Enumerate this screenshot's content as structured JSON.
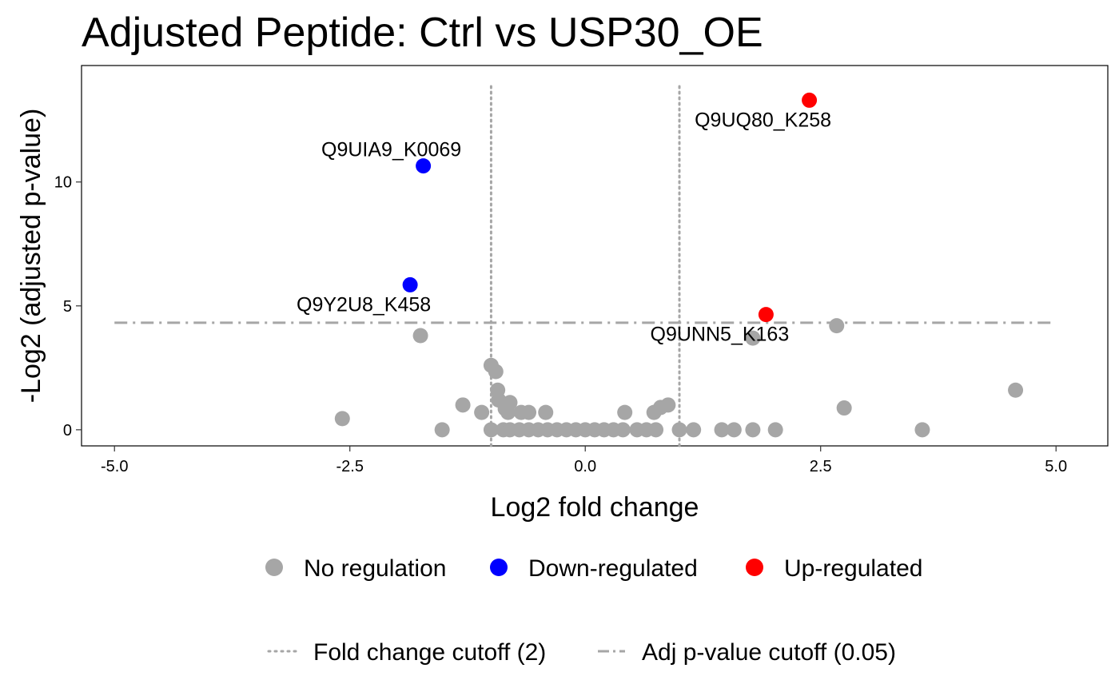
{
  "chart_data": {
    "type": "scatter",
    "title": "Adjusted Peptide: Ctrl vs USP30_OE",
    "xlabel": "Log2 fold change",
    "ylabel": "-Log2 (adjusted p-value)",
    "xlim": [
      -5.35,
      5.55
    ],
    "ylim": [
      -0.65,
      14.7
    ],
    "x_ticks": [
      -5.0,
      -2.5,
      0.0,
      2.5,
      5.0
    ],
    "x_tick_labels": [
      "-5.0",
      "-2.5",
      "0.0",
      "2.5",
      "5.0"
    ],
    "y_ticks": [
      0,
      5,
      10
    ],
    "y_tick_labels": [
      "0",
      "5",
      "10"
    ],
    "grid": false,
    "fold_change_cutoff_lines": [
      -1,
      1
    ],
    "adj_pvalue_cutoff_line": 4.32,
    "cutoff_line_span": [
      -5.0,
      5.0
    ],
    "series": [
      {
        "name": "No regulation",
        "color": "#a6a6a6",
        "points": [
          [
            -2.58,
            0.45
          ],
          [
            -1.52,
            0.0
          ],
          [
            -1.3,
            1.0
          ],
          [
            -1.1,
            0.7
          ],
          [
            -1.0,
            2.6
          ],
          [
            -0.95,
            2.35
          ],
          [
            -0.93,
            1.6
          ],
          [
            -0.92,
            1.2
          ],
          [
            -0.8,
            1.1
          ],
          [
            -0.85,
            0.85
          ],
          [
            -0.82,
            0.7
          ],
          [
            -0.68,
            0.7
          ],
          [
            -0.6,
            0.7
          ],
          [
            -0.42,
            0.7
          ],
          [
            -1.75,
            3.8
          ],
          [
            -1.0,
            0.0
          ],
          [
            -0.87,
            0.0
          ],
          [
            -0.8,
            0.0
          ],
          [
            -0.7,
            0.0
          ],
          [
            -0.6,
            0.0
          ],
          [
            -0.5,
            0.0
          ],
          [
            -0.4,
            0.0
          ],
          [
            -0.3,
            0.0
          ],
          [
            -0.2,
            0.0
          ],
          [
            -0.1,
            0.0
          ],
          [
            0.0,
            0.0
          ],
          [
            0.1,
            0.0
          ],
          [
            0.2,
            0.0
          ],
          [
            0.3,
            0.0
          ],
          [
            0.4,
            0.0
          ],
          [
            0.42,
            0.7
          ],
          [
            0.55,
            0.0
          ],
          [
            0.65,
            0.0
          ],
          [
            0.75,
            0.0
          ],
          [
            0.73,
            0.7
          ],
          [
            0.8,
            0.9
          ],
          [
            0.88,
            1.0
          ],
          [
            1.0,
            0.0
          ],
          [
            1.15,
            0.0
          ],
          [
            1.45,
            0.0
          ],
          [
            1.58,
            0.0
          ],
          [
            1.78,
            0.0
          ],
          [
            2.02,
            0.0
          ],
          [
            1.78,
            3.7
          ],
          [
            2.67,
            4.2
          ],
          [
            2.75,
            0.88
          ],
          [
            3.58,
            0.0
          ],
          [
            4.57,
            1.6
          ]
        ]
      },
      {
        "name": "Down-regulated",
        "color": "#0000ff",
        "points": [
          [
            -1.72,
            10.65
          ],
          [
            -1.86,
            5.85
          ]
        ]
      },
      {
        "name": "Up-regulated",
        "color": "#ff0000",
        "points": [
          [
            2.38,
            13.3
          ],
          [
            1.92,
            4.65
          ]
        ]
      }
    ],
    "annotations": [
      {
        "text": "Q9UIA9_K0069",
        "x": -1.72,
        "y": 10.65,
        "position": "above"
      },
      {
        "text": "Q9Y2U8_K458",
        "x": -1.86,
        "y": 5.85,
        "position": "below-left"
      },
      {
        "text": "Q9UQ80_K258",
        "x": 2.38,
        "y": 13.3,
        "position": "below-left"
      },
      {
        "text": "Q9UNN5_K163",
        "x": 1.92,
        "y": 4.65,
        "position": "below-left"
      }
    ],
    "legend": {
      "placement": "bottom",
      "point_entries": [
        "No regulation",
        "Down-regulated",
        "Up-regulated"
      ],
      "line_entries": [
        {
          "label": "Fold change cutoff (2)",
          "style": "dotted"
        },
        {
          "label": "Adj p-value cutoff (0.05)",
          "style": "dashdot"
        }
      ]
    },
    "colors": {
      "no_regulation": "#a6a6a6",
      "down_regulated": "#0000ff",
      "up_regulated": "#ff0000",
      "cutoff_line": "#a6a6a6"
    }
  }
}
